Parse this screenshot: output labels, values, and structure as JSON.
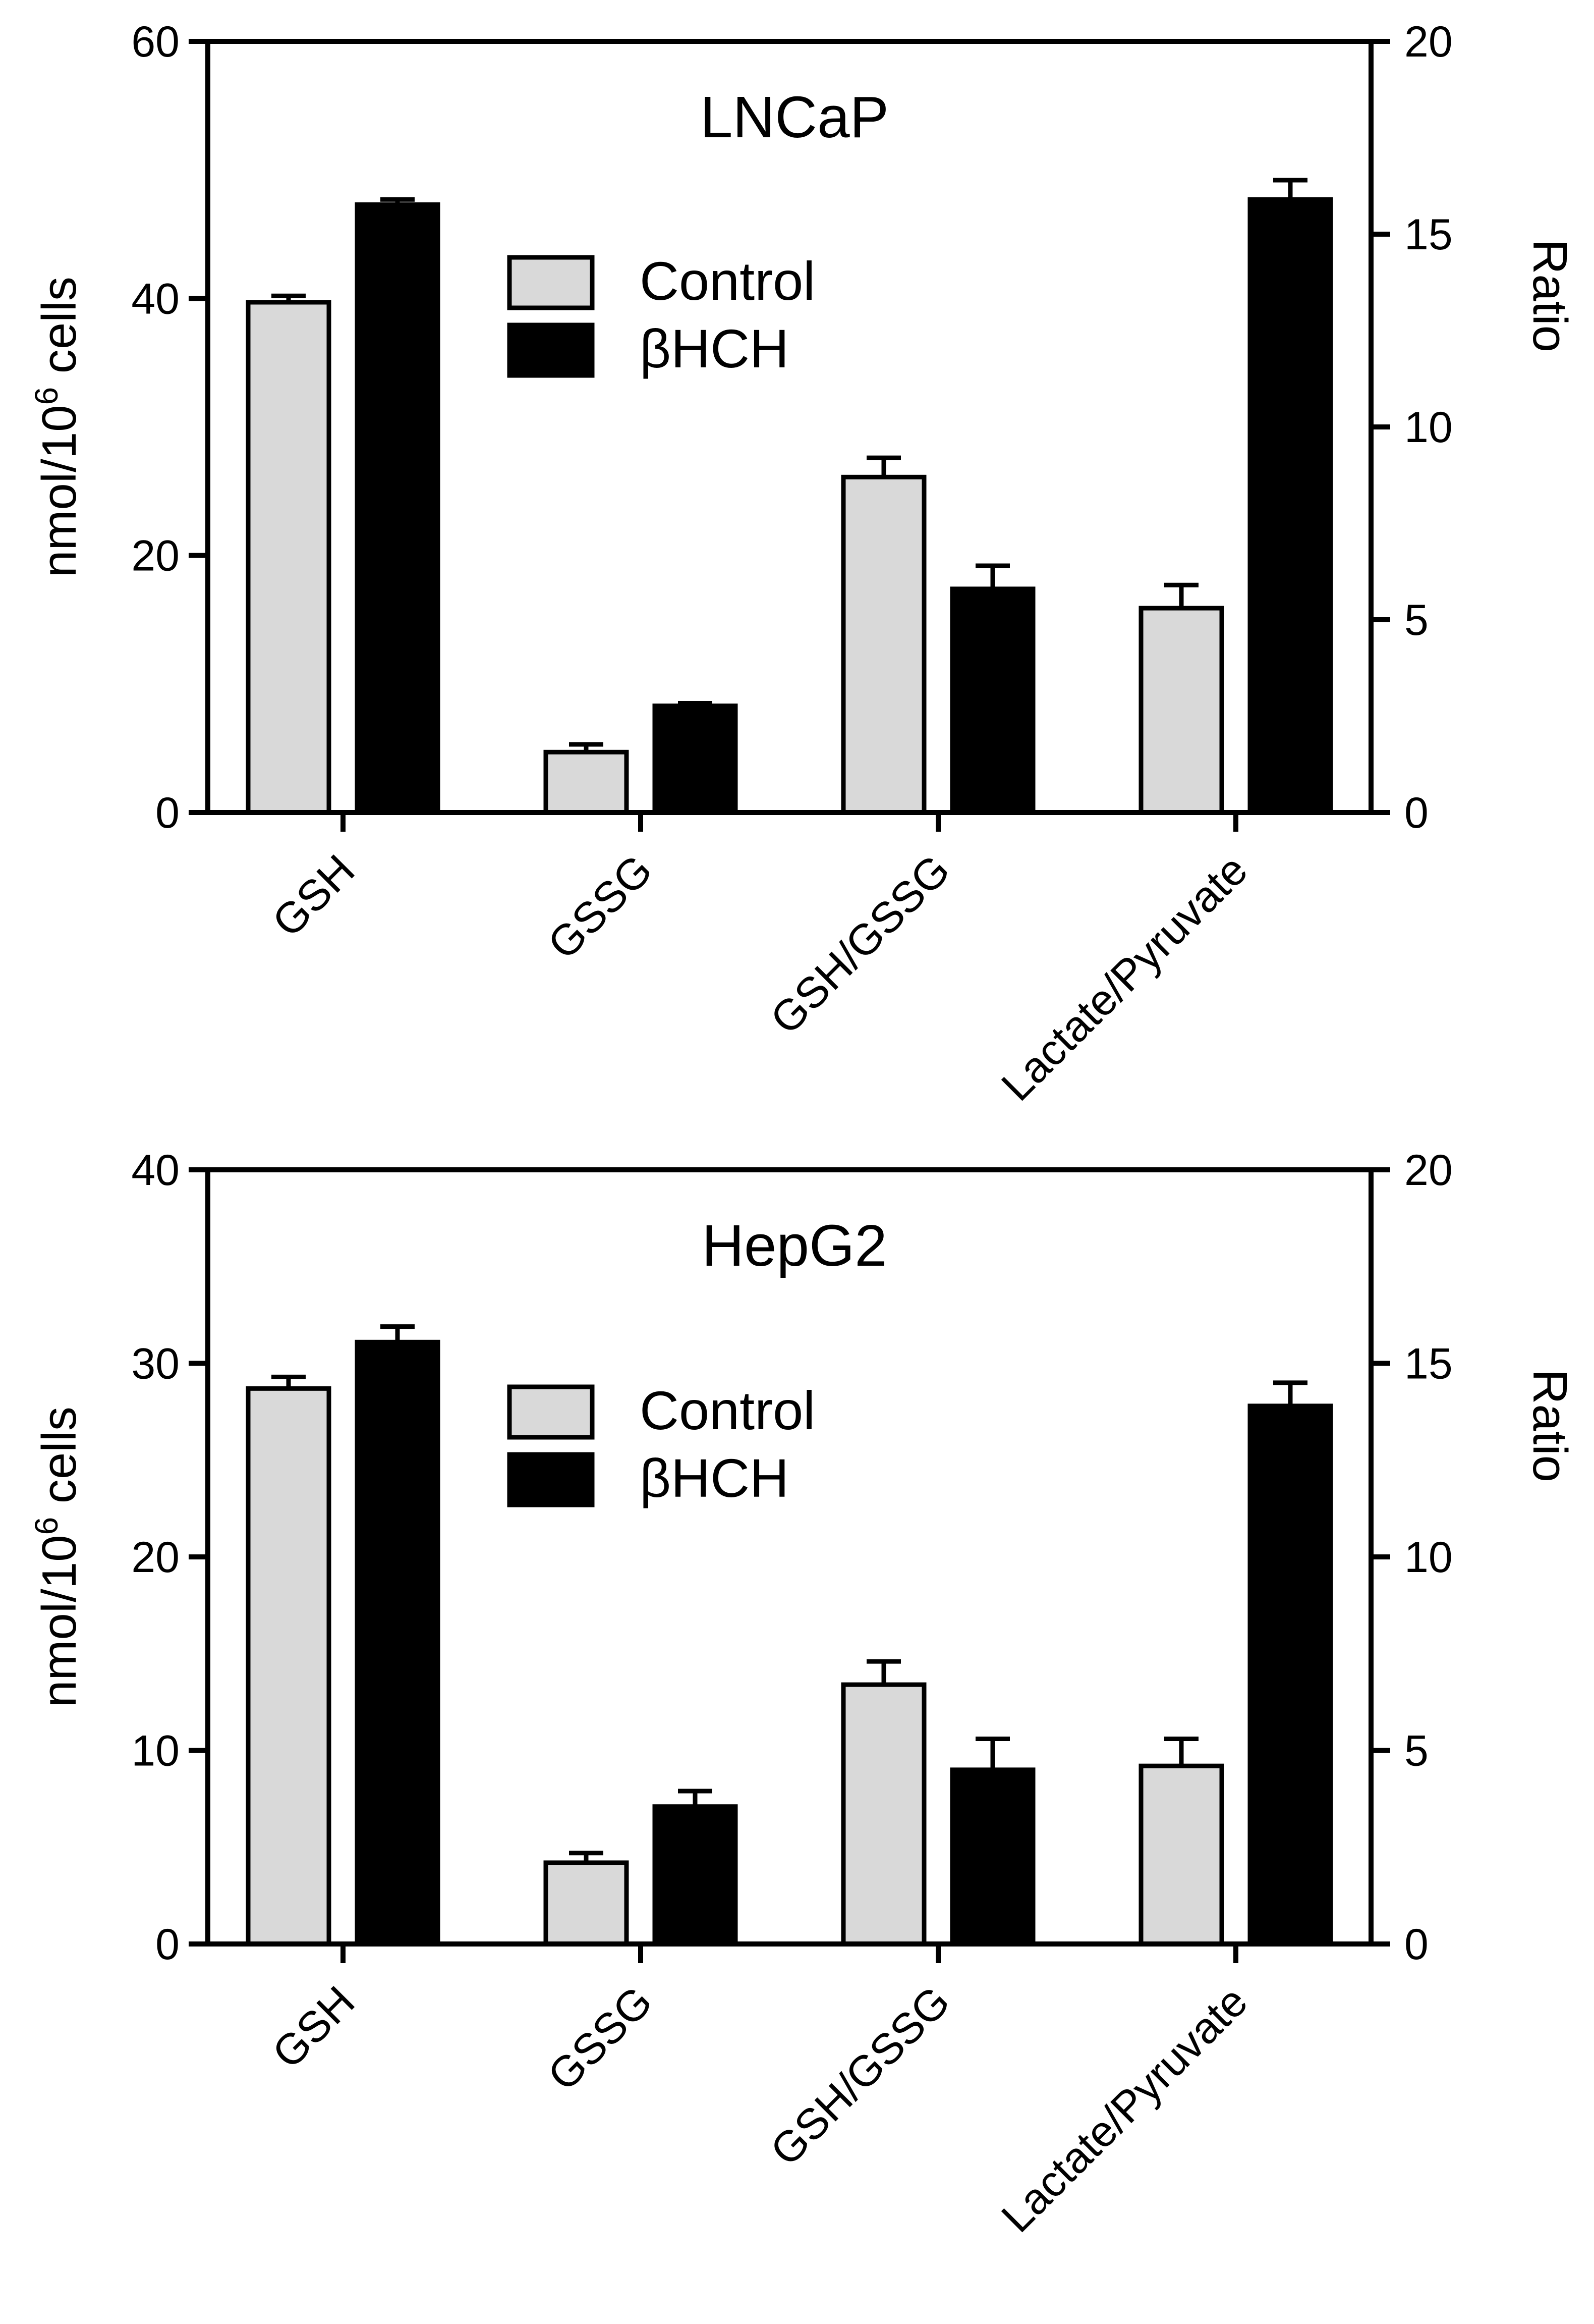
{
  "chart_data": [
    {
      "type": "bar",
      "title": "LNCaP",
      "categories": [
        "GSH",
        "GSSG",
        "GSH/GSSG",
        "Lactate/Pyruvate"
      ],
      "ylabel_left": "nmol/10",
      "ylabel_left_sup": "6",
      "ylabel_left_suffix": " cells",
      "ylabel_right": "Ratio",
      "ylim_left": [
        0,
        60
      ],
      "ylim_right": [
        0,
        20
      ],
      "yticks_left": [
        0,
        20,
        40,
        60
      ],
      "yticks_right": [
        0,
        5,
        10,
        15,
        20
      ],
      "legend": [
        "Control",
        "βHCH"
      ],
      "legend_position": "upper-center",
      "series": [
        {
          "name": "Control",
          "color": "#d9d9d9",
          "axis": [
            "left",
            "left",
            "right",
            "right"
          ],
          "values": [
            39.7,
            4.7,
            8.7,
            5.3
          ],
          "errors": [
            0.5,
            0.6,
            0.5,
            0.6
          ]
        },
        {
          "name": "βHCH",
          "color": "#000000",
          "axis": [
            "left",
            "left",
            "right",
            "right"
          ],
          "values": [
            47.3,
            8.3,
            5.8,
            15.9
          ],
          "errors": [
            0.4,
            0.2,
            0.6,
            0.5
          ]
        }
      ]
    },
    {
      "type": "bar",
      "title": "HepG2",
      "categories": [
        "GSH",
        "GSSG",
        "GSH/GSSG",
        "Lactate/Pyruvate"
      ],
      "ylabel_left": "nmol/10",
      "ylabel_left_sup": "6",
      "ylabel_left_suffix": " cells",
      "ylabel_right": "Ratio",
      "ylim_left": [
        0,
        40
      ],
      "ylim_right": [
        0,
        20
      ],
      "yticks_left": [
        0,
        10,
        20,
        30,
        40
      ],
      "yticks_right": [
        0,
        5,
        10,
        15,
        20
      ],
      "legend": [
        "Control",
        "βHCH"
      ],
      "legend_position": "upper-center",
      "series": [
        {
          "name": "Control",
          "color": "#d9d9d9",
          "axis": [
            "left",
            "left",
            "right",
            "right"
          ],
          "values": [
            28.7,
            4.2,
            6.7,
            4.6
          ],
          "errors": [
            0.6,
            0.5,
            0.6,
            0.7
          ]
        },
        {
          "name": "βHCH",
          "color": "#000000",
          "axis": [
            "left",
            "left",
            "right",
            "right"
          ],
          "values": [
            31.1,
            7.1,
            4.5,
            13.9
          ],
          "errors": [
            0.8,
            0.8,
            0.8,
            0.6
          ]
        }
      ]
    }
  ]
}
